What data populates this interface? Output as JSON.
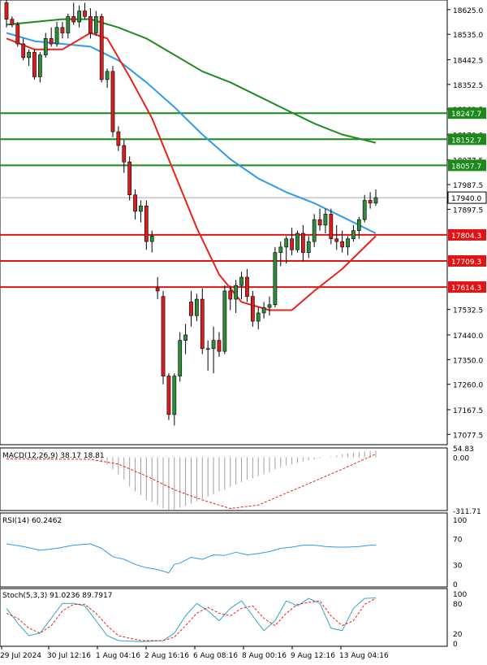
{
  "colors": {
    "background": "#ffffff",
    "bull_body": "#2e8b3a",
    "bear_body": "#d81e1e",
    "wick": "#000000",
    "sma_fast": "#e8231a",
    "sma_mid": "#2f9bea",
    "sma_slow": "#1f8a1f",
    "resistance": "#1a8a1a",
    "support": "#e01414",
    "current_price_line": "#a9a9a9",
    "macd_hist": "#a0a0a0",
    "macd_signal": "#e8231a",
    "rsi": "#2f9bea",
    "stoch_main": "#2fa6c8",
    "stoch_signal": "#e8231a",
    "panel_border": "#000000",
    "axis_text": "#000000",
    "grid_dots": "#c0c0c0"
  },
  "chart_data": [
    {
      "type": "candlestick",
      "price_ticks": [
        "18625.0",
        "18535.0",
        "18442.5",
        "18352.5",
        "18262.5",
        "18170.0",
        "18077.5",
        "17987.5",
        "17897.5",
        "17804.3",
        "17709.3",
        "17614.3",
        "17532.5",
        "17440.0",
        "17350.0",
        "17260.0",
        "17167.5",
        "17077.5"
      ],
      "ylim": [
        17040,
        18660
      ],
      "current_price": 17940.0,
      "current_price_label": "17940.0",
      "resistance_levels": [
        {
          "value": 18247.7,
          "label": "18247.7"
        },
        {
          "value": 18152.7,
          "label": "18152.7"
        },
        {
          "value": 18057.7,
          "label": "18057.7"
        }
      ],
      "support_levels": [
        {
          "value": 17804.3,
          "label": "17804.3"
        },
        {
          "value": 17709.3,
          "label": "17709.3"
        },
        {
          "value": 17614.3,
          "label": "17614.3"
        }
      ],
      "x_labels": [
        "29 Jul 2024",
        "30 Jul 12:16",
        "1 Aug 04:16",
        "2 Aug 16:16",
        "6 Aug 08:16",
        "8 Aug 00:16",
        "9 Aug 12:16",
        "13 Aug 04:16"
      ],
      "candles": [
        {
          "o": 18650,
          "h": 18670,
          "l": 18560,
          "c": 18590
        },
        {
          "o": 18590,
          "h": 18600,
          "l": 18560,
          "c": 18570
        },
        {
          "o": 18570,
          "h": 18580,
          "l": 18490,
          "c": 18500
        },
        {
          "o": 18500,
          "h": 18520,
          "l": 18440,
          "c": 18450
        },
        {
          "o": 18450,
          "h": 18480,
          "l": 18420,
          "c": 18470
        },
        {
          "o": 18470,
          "h": 18480,
          "l": 18370,
          "c": 18380
        },
        {
          "o": 18380,
          "h": 18470,
          "l": 18360,
          "c": 18460
        },
        {
          "o": 18460,
          "h": 18540,
          "l": 18450,
          "c": 18520
        },
        {
          "o": 18520,
          "h": 18560,
          "l": 18490,
          "c": 18500
        },
        {
          "o": 18500,
          "h": 18580,
          "l": 18490,
          "c": 18560
        },
        {
          "o": 18560,
          "h": 18580,
          "l": 18520,
          "c": 18540
        },
        {
          "o": 18540,
          "h": 18610,
          "l": 18520,
          "c": 18600
        },
        {
          "o": 18600,
          "h": 18650,
          "l": 18570,
          "c": 18580
        },
        {
          "o": 18580,
          "h": 18640,
          "l": 18560,
          "c": 18620
        },
        {
          "o": 18620,
          "h": 18650,
          "l": 18590,
          "c": 18600
        },
        {
          "o": 18600,
          "h": 18630,
          "l": 18520,
          "c": 18540
        },
        {
          "o": 18540,
          "h": 18620,
          "l": 18530,
          "c": 18600
        },
        {
          "o": 18600,
          "h": 18610,
          "l": 18360,
          "c": 18370
        },
        {
          "o": 18370,
          "h": 18410,
          "l": 18340,
          "c": 18400
        },
        {
          "o": 18400,
          "h": 18420,
          "l": 18160,
          "c": 18180
        },
        {
          "o": 18180,
          "h": 18200,
          "l": 18110,
          "c": 18130
        },
        {
          "o": 18130,
          "h": 18150,
          "l": 18030,
          "c": 18070
        },
        {
          "o": 18070,
          "h": 18090,
          "l": 17930,
          "c": 17950
        },
        {
          "o": 17950,
          "h": 17970,
          "l": 17860,
          "c": 17890
        },
        {
          "o": 17890,
          "h": 17930,
          "l": 17850,
          "c": 17910
        },
        {
          "o": 17910,
          "h": 17930,
          "l": 17750,
          "c": 17780
        },
        {
          "o": 17780,
          "h": 17820,
          "l": 17740,
          "c": 17800
        },
        {
          "o": 17610,
          "h": 17650,
          "l": 17570,
          "c": 17600
        },
        {
          "o": 17580,
          "h": 17600,
          "l": 17260,
          "c": 17290
        },
        {
          "o": 17290,
          "h": 17300,
          "l": 17130,
          "c": 17150
        },
        {
          "o": 17150,
          "h": 17300,
          "l": 17110,
          "c": 17290
        },
        {
          "o": 17290,
          "h": 17450,
          "l": 17270,
          "c": 17420
        },
        {
          "o": 17420,
          "h": 17480,
          "l": 17370,
          "c": 17440
        },
        {
          "o": 17560,
          "h": 17600,
          "l": 17470,
          "c": 17510
        },
        {
          "o": 17510,
          "h": 17590,
          "l": 17490,
          "c": 17570
        },
        {
          "o": 17570,
          "h": 17610,
          "l": 17370,
          "c": 17390
        },
        {
          "o": 17390,
          "h": 17420,
          "l": 17310,
          "c": 17390
        },
        {
          "o": 17390,
          "h": 17470,
          "l": 17300,
          "c": 17420
        },
        {
          "o": 17420,
          "h": 17450,
          "l": 17360,
          "c": 17380
        },
        {
          "o": 17380,
          "h": 17620,
          "l": 17370,
          "c": 17600
        },
        {
          "o": 17600,
          "h": 17620,
          "l": 17530,
          "c": 17570
        },
        {
          "o": 17570,
          "h": 17640,
          "l": 17520,
          "c": 17620
        },
        {
          "o": 17620,
          "h": 17670,
          "l": 17570,
          "c": 17650
        },
        {
          "o": 17650,
          "h": 17680,
          "l": 17560,
          "c": 17580
        },
        {
          "o": 17580,
          "h": 17600,
          "l": 17470,
          "c": 17490
        },
        {
          "o": 17490,
          "h": 17540,
          "l": 17460,
          "c": 17520
        },
        {
          "o": 17520,
          "h": 17560,
          "l": 17500,
          "c": 17540
        },
        {
          "o": 17540,
          "h": 17580,
          "l": 17510,
          "c": 17550
        },
        {
          "o": 17550,
          "h": 17760,
          "l": 17540,
          "c": 17740
        },
        {
          "o": 17740,
          "h": 17780,
          "l": 17690,
          "c": 17760
        },
        {
          "o": 17760,
          "h": 17800,
          "l": 17700,
          "c": 17790
        },
        {
          "o": 17790,
          "h": 17830,
          "l": 17730,
          "c": 17750
        },
        {
          "o": 17750,
          "h": 17820,
          "l": 17740,
          "c": 17810
        },
        {
          "o": 17810,
          "h": 17840,
          "l": 17710,
          "c": 17740
        },
        {
          "o": 17740,
          "h": 17800,
          "l": 17720,
          "c": 17780
        },
        {
          "o": 17780,
          "h": 17880,
          "l": 17760,
          "c": 17860
        },
        {
          "o": 17860,
          "h": 17900,
          "l": 17820,
          "c": 17840
        },
        {
          "o": 17840,
          "h": 17900,
          "l": 17810,
          "c": 17880
        },
        {
          "o": 17880,
          "h": 17900,
          "l": 17770,
          "c": 17790
        },
        {
          "o": 17790,
          "h": 17840,
          "l": 17750,
          "c": 17780
        },
        {
          "o": 17780,
          "h": 17820,
          "l": 17740,
          "c": 17760
        },
        {
          "o": 17760,
          "h": 17800,
          "l": 17730,
          "c": 17790
        },
        {
          "o": 17790,
          "h": 17840,
          "l": 17780,
          "c": 17820
        },
        {
          "o": 17820,
          "h": 17870,
          "l": 17790,
          "c": 17860
        },
        {
          "o": 17860,
          "h": 17950,
          "l": 17850,
          "c": 17930
        },
        {
          "o": 17930,
          "h": 17960,
          "l": 17900,
          "c": 17920
        },
        {
          "o": 17920,
          "h": 17970,
          "l": 17910,
          "c": 17940
        }
      ],
      "sma_fast": [
        [
          0,
          18520
        ],
        [
          5,
          18480
        ],
        [
          10,
          18480
        ],
        [
          15,
          18540
        ],
        [
          18,
          18520
        ],
        [
          22,
          18380
        ],
        [
          26,
          18230
        ],
        [
          30,
          18030
        ],
        [
          34,
          17830
        ],
        [
          38,
          17660
        ],
        [
          42,
          17560
        ],
        [
          47,
          17530
        ],
        [
          51,
          17530
        ],
        [
          55,
          17600
        ],
        [
          60,
          17680
        ],
        [
          63,
          17740
        ],
        [
          66,
          17800
        ]
      ],
      "sma_mid": [
        [
          0,
          18540
        ],
        [
          5,
          18510
        ],
        [
          10,
          18500
        ],
        [
          15,
          18490
        ],
        [
          20,
          18440
        ],
        [
          25,
          18360
        ],
        [
          30,
          18270
        ],
        [
          35,
          18170
        ],
        [
          40,
          18080
        ],
        [
          45,
          18010
        ],
        [
          50,
          17960
        ],
        [
          55,
          17920
        ],
        [
          60,
          17870
        ],
        [
          66,
          17810
        ]
      ],
      "sma_slow": [
        [
          0,
          18570
        ],
        [
          10,
          18590
        ],
        [
          15,
          18590
        ],
        [
          20,
          18560
        ],
        [
          25,
          18520
        ],
        [
          30,
          18460
        ],
        [
          35,
          18400
        ],
        [
          40,
          18360
        ],
        [
          45,
          18310
        ],
        [
          50,
          18260
        ],
        [
          55,
          18210
        ],
        [
          60,
          18170
        ],
        [
          66,
          18140
        ]
      ]
    },
    {
      "type": "bar",
      "title": "MACD(12,26,9) 38.17 18.81",
      "ticks": [
        "54.83",
        "0.00",
        "-311.71"
      ],
      "ylim": [
        -311.71,
        54.83
      ],
      "histogram": [
        -5,
        -6,
        -8,
        -10,
        -11,
        -12,
        -12,
        -12,
        -11,
        -11,
        -10,
        -10,
        -9,
        -8,
        -8,
        -8,
        -9,
        -30,
        -40,
        -70,
        -100,
        -130,
        -170,
        -200,
        -220,
        -250,
        -260,
        -280,
        -300,
        -310,
        -305,
        -295,
        -285,
        -270,
        -258,
        -245,
        -230,
        -215,
        -200,
        -190,
        -172,
        -160,
        -145,
        -130,
        -122,
        -110,
        -100,
        -88,
        -70,
        -58,
        -48,
        -40,
        -32,
        -24,
        -18,
        -12,
        -6,
        0,
        4,
        10,
        18,
        22,
        26,
        30,
        34,
        36,
        38
      ],
      "signal": [
        [
          0,
          -10
        ],
        [
          15,
          -12
        ],
        [
          20,
          -40
        ],
        [
          25,
          -110
        ],
        [
          30,
          -190
        ],
        [
          35,
          -250
        ],
        [
          40,
          -300
        ],
        [
          45,
          -280
        ],
        [
          50,
          -210
        ],
        [
          55,
          -140
        ],
        [
          60,
          -70
        ],
        [
          66,
          19
        ]
      ]
    },
    {
      "type": "line",
      "title": "RSI(14) 60.2462",
      "ticks": [
        "100",
        "70",
        "30",
        "0"
      ],
      "ylim": [
        0,
        100
      ],
      "values": [
        [
          0,
          62
        ],
        [
          3,
          58
        ],
        [
          6,
          52
        ],
        [
          9,
          55
        ],
        [
          12,
          60
        ],
        [
          15,
          62
        ],
        [
          17,
          55
        ],
        [
          19,
          42
        ],
        [
          21,
          38
        ],
        [
          23,
          30
        ],
        [
          25,
          25
        ],
        [
          27,
          22
        ],
        [
          29,
          17
        ],
        [
          30,
          30
        ],
        [
          31,
          32
        ],
        [
          33,
          41
        ],
        [
          35,
          38
        ],
        [
          37,
          45
        ],
        [
          39,
          44
        ],
        [
          41,
          49
        ],
        [
          43,
          45
        ],
        [
          45,
          47
        ],
        [
          47,
          50
        ],
        [
          49,
          55
        ],
        [
          51,
          57
        ],
        [
          53,
          60
        ],
        [
          55,
          60
        ],
        [
          57,
          58
        ],
        [
          59,
          57
        ],
        [
          61,
          57
        ],
        [
          63,
          58
        ],
        [
          65,
          60
        ],
        [
          66,
          60
        ]
      ]
    },
    {
      "type": "line",
      "title": "Stoch(5,3,3) 91.0236 89.7917",
      "ticks": [
        "100",
        "80",
        "20",
        "0"
      ],
      "ylim": [
        0,
        100
      ],
      "main": [
        [
          0,
          70
        ],
        [
          2,
          40
        ],
        [
          4,
          15
        ],
        [
          6,
          20
        ],
        [
          8,
          50
        ],
        [
          10,
          80
        ],
        [
          12,
          80
        ],
        [
          14,
          75
        ],
        [
          16,
          45
        ],
        [
          18,
          15
        ],
        [
          20,
          5
        ],
        [
          24,
          3
        ],
        [
          28,
          5
        ],
        [
          30,
          20
        ],
        [
          32,
          55
        ],
        [
          34,
          80
        ],
        [
          36,
          65
        ],
        [
          38,
          45
        ],
        [
          40,
          70
        ],
        [
          42,
          85
        ],
        [
          44,
          55
        ],
        [
          46,
          25
        ],
        [
          48,
          45
        ],
        [
          50,
          85
        ],
        [
          52,
          75
        ],
        [
          54,
          90
        ],
        [
          56,
          80
        ],
        [
          58,
          30
        ],
        [
          60,
          25
        ],
        [
          62,
          70
        ],
        [
          64,
          90
        ],
        [
          66,
          91
        ]
      ],
      "signal": [
        [
          0,
          60
        ],
        [
          2,
          50
        ],
        [
          4,
          30
        ],
        [
          6,
          20
        ],
        [
          8,
          35
        ],
        [
          10,
          65
        ],
        [
          12,
          78
        ],
        [
          14,
          78
        ],
        [
          16,
          60
        ],
        [
          18,
          35
        ],
        [
          20,
          15
        ],
        [
          24,
          5
        ],
        [
          28,
          5
        ],
        [
          30,
          12
        ],
        [
          32,
          35
        ],
        [
          34,
          60
        ],
        [
          36,
          72
        ],
        [
          38,
          60
        ],
        [
          40,
          55
        ],
        [
          42,
          70
        ],
        [
          44,
          75
        ],
        [
          46,
          50
        ],
        [
          48,
          35
        ],
        [
          50,
          60
        ],
        [
          52,
          78
        ],
        [
          54,
          82
        ],
        [
          56,
          85
        ],
        [
          58,
          55
        ],
        [
          60,
          35
        ],
        [
          62,
          45
        ],
        [
          64,
          78
        ],
        [
          66,
          90
        ]
      ]
    }
  ]
}
